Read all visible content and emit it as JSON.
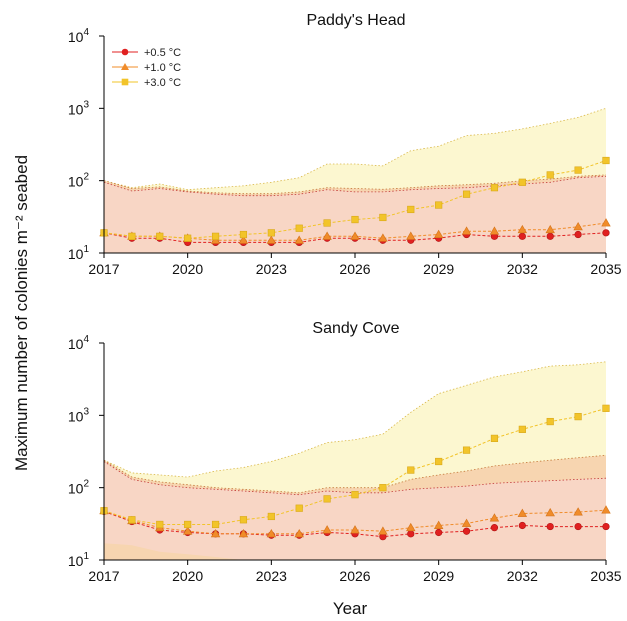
{
  "figure": {
    "ylabel": "Maximum number of colonies m⁻² seabed",
    "xlabel": "Year"
  },
  "colors": {
    "s05": "#e02020",
    "s10": "#f08c2a",
    "s30": "#f2c42a",
    "band05": "#f9d7d7",
    "band10": "#f6c9a6",
    "band30": "#fbf6c8"
  },
  "chart_data": [
    {
      "type": "line",
      "title": "Paddy's Head",
      "yscale": "log",
      "ylim": [
        10,
        10000
      ],
      "xlim": [
        2017,
        2035
      ],
      "xticks": [
        "2017",
        "2020",
        "2023",
        "2026",
        "2029",
        "2032",
        "2035"
      ],
      "yticks": [
        {
          "base": "10",
          "exp": "1"
        },
        {
          "base": "10",
          "exp": "2"
        },
        {
          "base": "10",
          "exp": "3"
        },
        {
          "base": "10",
          "exp": "4"
        }
      ],
      "legend": {
        "position": "top-left"
      },
      "x": [
        2017,
        2018,
        2019,
        2020,
        2021,
        2022,
        2023,
        2024,
        2025,
        2026,
        2027,
        2028,
        2029,
        2030,
        2031,
        2032,
        2033,
        2034,
        2035
      ],
      "series": [
        {
          "name": "+0.5 °C",
          "marker": "circle",
          "values": [
            19,
            16,
            16,
            14,
            14,
            14,
            14,
            14,
            16,
            16,
            15,
            15,
            16,
            18,
            17,
            17,
            17,
            18,
            19
          ],
          "upper": [
            95,
            72,
            78,
            70,
            65,
            62,
            62,
            65,
            75,
            70,
            70,
            75,
            78,
            80,
            85,
            90,
            95,
            110,
            115
          ],
          "lower": [
            10,
            10,
            10,
            10,
            10,
            10,
            10,
            10,
            10,
            10,
            10,
            10,
            10,
            10,
            10,
            10,
            10,
            10,
            10
          ]
        },
        {
          "name": "+1.0 °C",
          "marker": "triangle",
          "values": [
            19,
            17,
            17,
            16,
            15,
            15,
            15,
            15,
            17,
            17,
            16,
            17,
            18,
            20,
            20,
            21,
            21,
            23,
            26
          ],
          "upper": [
            100,
            78,
            82,
            72,
            68,
            66,
            66,
            70,
            80,
            78,
            76,
            80,
            85,
            88,
            92,
            100,
            105,
            115,
            120
          ],
          "lower": [
            10,
            10,
            10,
            10,
            10,
            10,
            10,
            10,
            10,
            10,
            10,
            10,
            10,
            10,
            10,
            10,
            10,
            10,
            10
          ]
        },
        {
          "name": "+3.0 °C",
          "marker": "square",
          "values": [
            19,
            17,
            17,
            16,
            17,
            18,
            19,
            22,
            26,
            29,
            31,
            40,
            46,
            65,
            80,
            95,
            120,
            140,
            190
          ],
          "upper": [
            100,
            80,
            90,
            75,
            80,
            85,
            95,
            110,
            170,
            170,
            160,
            260,
            300,
            420,
            450,
            520,
            620,
            750,
            1000
          ],
          "lower": [
            10,
            10,
            10,
            10,
            10,
            10,
            10,
            10,
            10,
            10,
            10,
            10,
            10,
            10,
            10,
            10,
            10,
            10,
            10
          ]
        }
      ]
    },
    {
      "type": "line",
      "title": "Sandy Cove",
      "yscale": "log",
      "ylim": [
        10,
        10000
      ],
      "xlim": [
        2017,
        2035
      ],
      "xticks": [
        "2017",
        "2020",
        "2023",
        "2026",
        "2029",
        "2032",
        "2035"
      ],
      "yticks": [
        {
          "base": "10",
          "exp": "1"
        },
        {
          "base": "10",
          "exp": "2"
        },
        {
          "base": "10",
          "exp": "3"
        },
        {
          "base": "10",
          "exp": "4"
        }
      ],
      "x": [
        2017,
        2018,
        2019,
        2020,
        2021,
        2022,
        2023,
        2024,
        2025,
        2026,
        2027,
        2028,
        2029,
        2030,
        2031,
        2032,
        2033,
        2034,
        2035
      ],
      "series": [
        {
          "name": "+0.5 °C",
          "marker": "circle",
          "values": [
            47,
            34,
            26,
            24,
            23,
            23,
            22,
            22,
            24,
            23,
            21,
            23,
            24,
            25,
            28,
            30,
            29,
            29,
            29
          ],
          "upper": [
            230,
            130,
            110,
            100,
            95,
            90,
            85,
            80,
            90,
            85,
            85,
            95,
            100,
            105,
            115,
            120,
            125,
            130,
            135
          ],
          "lower": [
            17,
            16,
            13,
            12,
            11,
            10,
            10,
            10,
            10,
            10,
            10,
            10,
            10,
            10,
            10,
            10,
            10,
            10,
            10
          ]
        },
        {
          "name": "+1.0 °C",
          "marker": "triangle",
          "values": [
            48,
            35,
            28,
            25,
            23,
            23,
            23,
            23,
            26,
            26,
            25,
            28,
            30,
            32,
            38,
            44,
            45,
            46,
            49
          ],
          "upper": [
            240,
            140,
            120,
            110,
            100,
            95,
            90,
            85,
            100,
            100,
            100,
            130,
            150,
            170,
            200,
            220,
            240,
            260,
            280
          ],
          "lower": [
            10,
            10,
            10,
            10,
            10,
            10,
            10,
            10,
            10,
            10,
            10,
            10,
            10,
            10,
            10,
            10,
            10,
            10,
            10
          ]
        },
        {
          "name": "+3.0 °C",
          "marker": "square",
          "values": [
            48,
            36,
            31,
            31,
            31,
            36,
            40,
            52,
            70,
            80,
            100,
            175,
            230,
            330,
            480,
            640,
            820,
            960,
            1250
          ],
          "upper": [
            240,
            160,
            150,
            140,
            170,
            190,
            230,
            300,
            420,
            460,
            550,
            1100,
            2000,
            2600,
            3400,
            4000,
            4800,
            5000,
            5500
          ],
          "lower": [
            10,
            10,
            10,
            10,
            10,
            10,
            10,
            10,
            10,
            10,
            10,
            10,
            10,
            10,
            10,
            10,
            10,
            10,
            10
          ]
        }
      ]
    }
  ]
}
